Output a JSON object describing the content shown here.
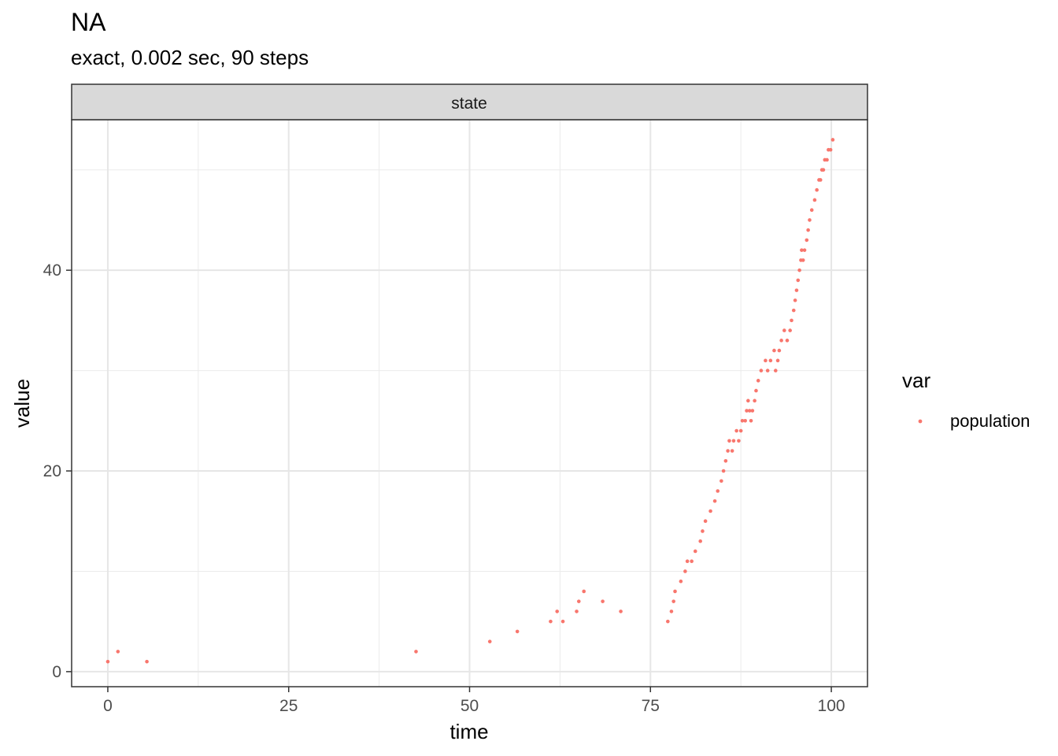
{
  "title": "NA",
  "subtitle": "exact, 0.002 sec, 90 steps",
  "chart_data": {
    "type": "scatter",
    "facet_strip": "state",
    "xlabel": "time",
    "ylabel": "value",
    "xlim": [
      -5,
      105
    ],
    "ylim": [
      -1.5,
      55
    ],
    "x_ticks": [
      0,
      25,
      50,
      75,
      100
    ],
    "y_ticks": [
      0,
      20,
      40
    ],
    "grid": true,
    "legend_position": "right",
    "legend_title": "var",
    "series": [
      {
        "name": "population",
        "color": "#f8766d",
        "x": [
          0.0,
          1.4,
          5.4,
          42.6,
          52.8,
          56.6,
          61.2,
          62.1,
          62.9,
          64.8,
          65.1,
          65.8,
          68.4,
          70.9,
          77.4,
          77.9,
          78.2,
          78.4,
          79.2,
          79.8,
          80.1,
          80.7,
          81.2,
          81.9,
          82.2,
          82.6,
          83.3,
          83.9,
          84.3,
          84.8,
          85.1,
          85.4,
          85.7,
          85.9,
          86.3,
          86.5,
          86.9,
          87.2,
          87.5,
          87.7,
          88.1,
          88.3,
          88.5,
          88.7,
          88.9,
          89.1,
          89.4,
          89.6,
          89.9,
          90.3,
          90.9,
          91.2,
          91.6,
          92.1,
          92.3,
          92.6,
          92.8,
          93.1,
          93.5,
          93.9,
          94.3,
          94.5,
          94.8,
          95.0,
          95.2,
          95.4,
          95.6,
          95.8,
          95.9,
          96.1,
          96.3,
          96.6,
          96.8,
          97.0,
          97.3,
          97.7,
          98.0,
          98.3,
          98.5,
          98.7,
          98.9,
          99.1,
          99.4,
          99.6,
          99.9,
          100.2
        ],
        "y": [
          1,
          2,
          1,
          2,
          3,
          4,
          5,
          6,
          5,
          6,
          7,
          8,
          7,
          6,
          5,
          6,
          7,
          8,
          9,
          10,
          11,
          11,
          12,
          13,
          14,
          15,
          16,
          17,
          18,
          19,
          20,
          21,
          22,
          23,
          22,
          23,
          24,
          23,
          24,
          25,
          25,
          26,
          27,
          26,
          25,
          26,
          27,
          28,
          29,
          30,
          31,
          30,
          31,
          32,
          30,
          31,
          32,
          33,
          34,
          33,
          34,
          35,
          36,
          37,
          38,
          39,
          40,
          41,
          42,
          41,
          42,
          43,
          44,
          45,
          46,
          47,
          48,
          49,
          49,
          50,
          50,
          51,
          51,
          52,
          52,
          53
        ]
      }
    ]
  }
}
